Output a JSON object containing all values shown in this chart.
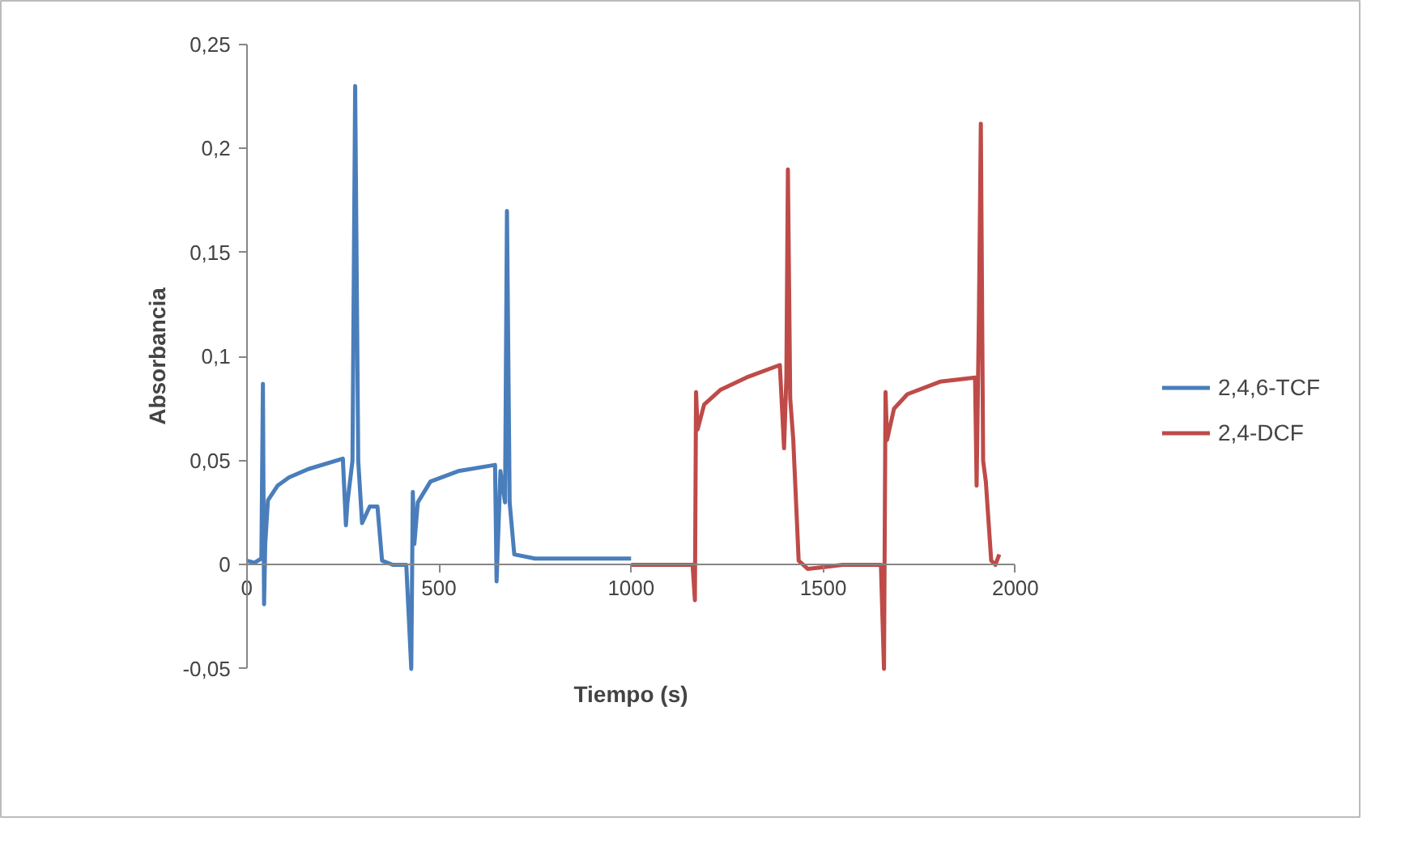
{
  "chart_data": {
    "type": "line",
    "xlabel": "Tiempo (s)",
    "ylabel": "Absorbancia",
    "xlim": [
      0,
      2000
    ],
    "xticks": [
      0,
      500,
      1000,
      1500,
      2000
    ],
    "ylim": [
      -0.05,
      0.25
    ],
    "yticks": [
      {
        "value": -0.05,
        "label": "-0,05"
      },
      0,
      {
        "value": 0.05,
        "label": "0,05"
      },
      {
        "value": 0.1,
        "label": "0,1"
      },
      {
        "value": 0.15,
        "label": "0,15"
      },
      {
        "value": 0.2,
        "label": "0,2"
      },
      {
        "value": 0.25,
        "label": "0,25"
      }
    ],
    "grid": false,
    "legend": "right",
    "marker": "none",
    "line_style": "solid",
    "series": [
      {
        "name": "2,4,6-TCF",
        "color": "#4a7ebb",
        "x": [
          0,
          20,
          38,
          42,
          45,
          48,
          55,
          80,
          110,
          160,
          250,
          258,
          262,
          275,
          282,
          290,
          300,
          320,
          340,
          352,
          380,
          415,
          428,
          432,
          436,
          445,
          478,
          550,
          646,
          650,
          660,
          672,
          677,
          684,
          696,
          750,
          850,
          1000
        ],
        "values": [
          0.002,
          0.001,
          0.003,
          0.087,
          -0.019,
          0.01,
          0.031,
          0.038,
          0.042,
          0.046,
          0.051,
          0.019,
          0.03,
          0.05,
          0.23,
          0.05,
          0.02,
          0.028,
          0.028,
          0.002,
          0.0,
          0.0,
          -0.05,
          0.035,
          0.01,
          0.03,
          0.04,
          0.045,
          0.048,
          -0.008,
          0.045,
          0.03,
          0.17,
          0.03,
          0.005,
          0.003,
          0.003,
          0.003
        ]
      },
      {
        "name": "2,4-DCF",
        "color": "#be4b48",
        "x": [
          1000,
          1080,
          1160,
          1166,
          1169,
          1173,
          1190,
          1232,
          1300,
          1387,
          1398,
          1404,
          1408,
          1414,
          1422,
          1436,
          1460,
          1550,
          1650,
          1658,
          1662,
          1666,
          1684,
          1719,
          1804,
          1895,
          1899,
          1905,
          1910,
          1916,
          1923,
          1937,
          1948,
          1958
        ],
        "values": [
          0.0,
          0.0,
          0.0,
          -0.017,
          0.083,
          0.065,
          0.077,
          0.084,
          0.09,
          0.096,
          0.056,
          0.09,
          0.19,
          0.08,
          0.06,
          0.002,
          -0.002,
          0.0,
          0.0,
          -0.05,
          0.083,
          0.06,
          0.075,
          0.082,
          0.088,
          0.09,
          0.038,
          0.12,
          0.212,
          0.05,
          0.04,
          0.002,
          0.0,
          0.005
        ]
      }
    ]
  }
}
